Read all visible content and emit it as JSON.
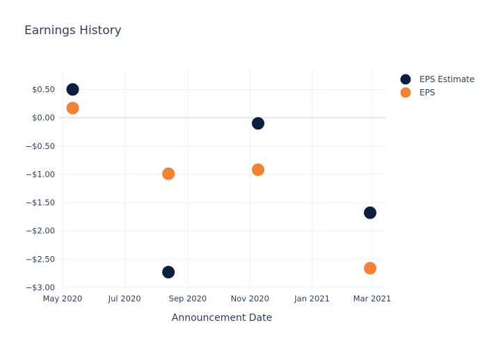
{
  "chart_data": {
    "type": "scatter",
    "title": "Earnings History",
    "xlabel": "Announcement Date",
    "ylabel": "",
    "x_tick_labels": [
      "May 2020",
      "Jul 2020",
      "Sep 2020",
      "Nov 2020",
      "Jan 2021",
      "Mar 2021"
    ],
    "x_tick_dates": [
      "2020-05-01",
      "2020-07-01",
      "2020-09-01",
      "2020-11-01",
      "2021-01-01",
      "2021-03-01"
    ],
    "xlim": [
      "2020-04-27",
      "2021-03-14"
    ],
    "y_tick_labels": [
      "$0.50",
      "$0.00",
      "−$0.50",
      "−$1.00",
      "−$1.50",
      "−$2.00",
      "−$2.50",
      "−$3.00"
    ],
    "y_tick_values": [
      0.5,
      0,
      -0.5,
      -1.0,
      -1.5,
      -2.0,
      -2.5,
      -3.0
    ],
    "ylim": [
      -3.0,
      0.85
    ],
    "grid": true,
    "legend_position": "top-right",
    "series": [
      {
        "name": "EPS Estimate",
        "color": "#0b1f3f",
        "points": [
          {
            "x": "2020-05-11",
            "y": 0.5
          },
          {
            "x": "2020-08-13",
            "y": -2.73
          },
          {
            "x": "2020-11-09",
            "y": -0.1
          },
          {
            "x": "2021-02-27",
            "y": -1.68
          }
        ]
      },
      {
        "name": "EPS",
        "color": "#f58233",
        "points": [
          {
            "x": "2020-05-11",
            "y": 0.17
          },
          {
            "x": "2020-08-13",
            "y": -0.99
          },
          {
            "x": "2020-11-09",
            "y": -0.92
          },
          {
            "x": "2021-02-27",
            "y": -2.66
          }
        ]
      }
    ]
  }
}
